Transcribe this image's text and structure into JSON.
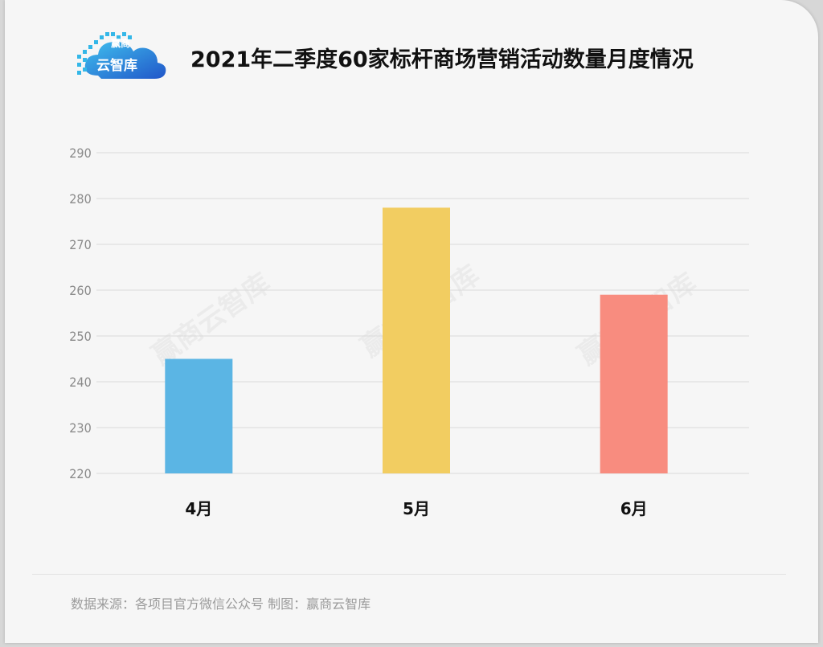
{
  "header": {
    "logo_top": "赢商",
    "logo_main": "云智库",
    "title": "2021年二季度60家标杆商场营销活动数量月度情况"
  },
  "chart_data": {
    "type": "bar",
    "categories": [
      "4月",
      "5月",
      "6月"
    ],
    "values": [
      245,
      278,
      259
    ],
    "ylim": [
      220,
      290
    ],
    "yticks": [
      220,
      230,
      240,
      250,
      260,
      270,
      280,
      290
    ],
    "colors": [
      "#5bb5e4",
      "#f2cd61",
      "#f88c7f"
    ],
    "grid": true,
    "title": "",
    "xlabel": "",
    "ylabel": ""
  },
  "watermarks": [
    "赢商云智库",
    "赢商云智库",
    "赢商云智库"
  ],
  "footer": {
    "source": "数据来源：各项目官方微信公众号   制图：赢商云智库"
  },
  "colors": {
    "grid": "#d9d9d9",
    "tick_text": "#8a8a8a",
    "axis_label": "#111111",
    "logo_cloud": "#2a7fd4"
  },
  "icons": {
    "logo": "cloud-pixel-logo-icon"
  }
}
